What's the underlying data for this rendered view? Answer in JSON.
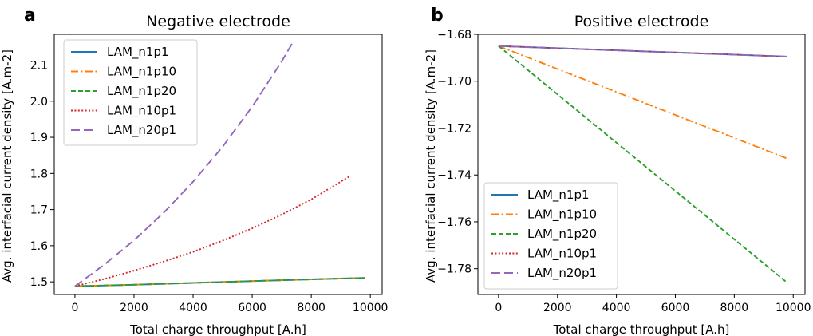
{
  "chart_data": [
    {
      "panel_letter": "a",
      "type": "line",
      "title": "Negative electrode",
      "xlabel": "Total charge throughput [A.h]",
      "ylabel": "Avg. interfacial current density [A.m-2]",
      "xlim": [
        -700,
        10400
      ],
      "ylim": [
        1.465,
        2.185
      ],
      "xticks": [
        0,
        2000,
        4000,
        6000,
        8000,
        10000
      ],
      "yticks": [
        1.5,
        1.6,
        1.7,
        1.8,
        1.9,
        2.0,
        2.1
      ],
      "ytick_labels": [
        "1.5",
        "1.6",
        "1.7",
        "1.8",
        "1.9",
        "2.0",
        "2.1"
      ],
      "grid": false,
      "legend_position": "top-left",
      "series": [
        {
          "name": "LAM_n1p1",
          "color": "#1f77b4",
          "style": "solid",
          "x": [
            0,
            2000,
            4000,
            6000,
            8000,
            9800
          ],
          "y": [
            1.488,
            1.492,
            1.497,
            1.502,
            1.507,
            1.511
          ]
        },
        {
          "name": "LAM_n1p10",
          "color": "#ff7f0e",
          "style": "dashdot",
          "x": [
            0,
            2000,
            4000,
            6000,
            8000,
            9800
          ],
          "y": [
            1.488,
            1.492,
            1.497,
            1.502,
            1.507,
            1.511
          ]
        },
        {
          "name": "LAM_n1p20",
          "color": "#2ca02c",
          "style": "dashed",
          "x": [
            0,
            2000,
            4000,
            6000,
            8000,
            9800
          ],
          "y": [
            1.488,
            1.492,
            1.497,
            1.502,
            1.507,
            1.511
          ]
        },
        {
          "name": "LAM_n10p1",
          "color": "#d62728",
          "style": "dotted",
          "x": [
            0,
            1000,
            2000,
            3000,
            4000,
            5000,
            6000,
            7000,
            8000,
            9300
          ],
          "y": [
            1.488,
            1.508,
            1.531,
            1.556,
            1.583,
            1.614,
            1.648,
            1.686,
            1.728,
            1.792
          ]
        },
        {
          "name": "LAM_n20p1",
          "color": "#9467bd",
          "style": "loosedash",
          "x": [
            0,
            1000,
            2000,
            3000,
            4000,
            5000,
            6000,
            7000,
            7400
          ],
          "y": [
            1.488,
            1.548,
            1.615,
            1.691,
            1.777,
            1.874,
            1.985,
            2.11,
            2.166
          ]
        }
      ]
    },
    {
      "panel_letter": "b",
      "type": "line",
      "title": "Positive electrode",
      "xlabel": "Total charge throughput [A.h]",
      "ylabel": "Avg. interfacial current density [A.m-2]",
      "xlim": [
        -700,
        10400
      ],
      "ylim": [
        -1.791,
        -1.68
      ],
      "xticks": [
        0,
        2000,
        4000,
        6000,
        8000,
        10000
      ],
      "yticks": [
        -1.68,
        -1.7,
        -1.72,
        -1.74,
        -1.76,
        -1.78
      ],
      "ytick_labels": [
        "−1.68",
        "−1.70",
        "−1.72",
        "−1.74",
        "−1.76",
        "−1.78"
      ],
      "grid": false,
      "legend_position": "bottom-left",
      "series": [
        {
          "name": "LAM_n1p1",
          "color": "#1f77b4",
          "style": "solid",
          "x": [
            0,
            9800
          ],
          "y": [
            -1.685,
            -1.6895
          ]
        },
        {
          "name": "LAM_n1p10",
          "color": "#ff7f0e",
          "style": "dashdot",
          "x": [
            0,
            9800
          ],
          "y": [
            -1.685,
            -1.733
          ]
        },
        {
          "name": "LAM_n1p20",
          "color": "#2ca02c",
          "style": "dashed",
          "x": [
            0,
            9800
          ],
          "y": [
            -1.685,
            -1.786
          ]
        },
        {
          "name": "LAM_n10p1",
          "color": "#d62728",
          "style": "dotted",
          "x": [
            0,
            9800
          ],
          "y": [
            -1.685,
            -1.6895
          ]
        },
        {
          "name": "LAM_n20p1",
          "color": "#9467bd",
          "style": "loosedash",
          "x": [
            0,
            9800
          ],
          "y": [
            -1.685,
            -1.6895
          ]
        }
      ]
    }
  ]
}
